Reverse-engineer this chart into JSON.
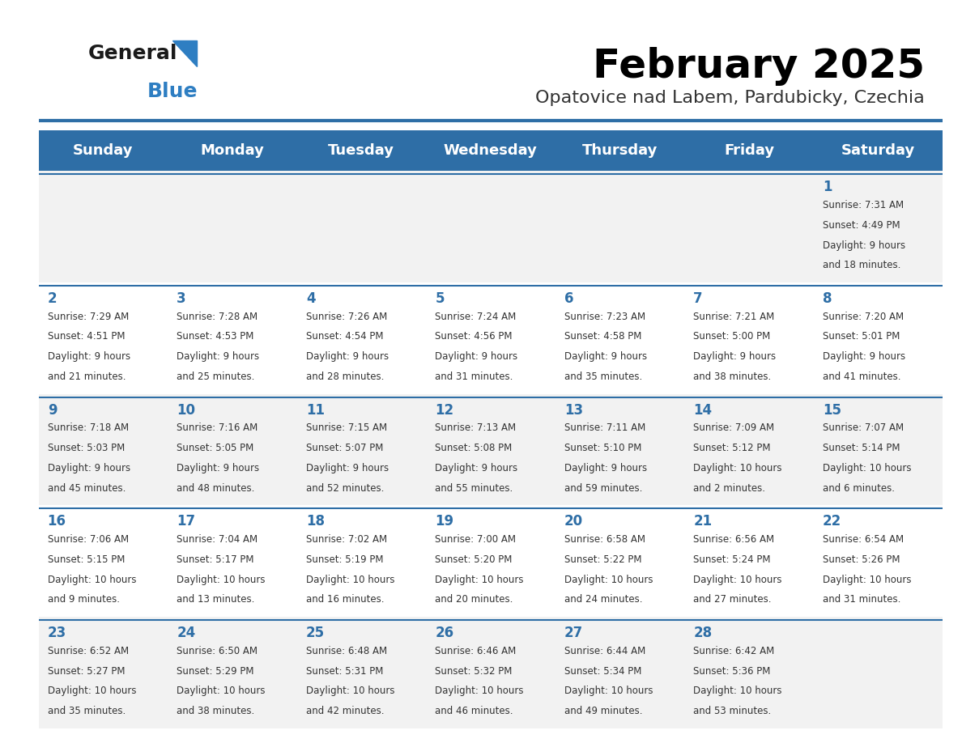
{
  "title": "February 2025",
  "subtitle": "Opatovice nad Labem, Pardubicky, Czechia",
  "days_of_week": [
    "Sunday",
    "Monday",
    "Tuesday",
    "Wednesday",
    "Thursday",
    "Friday",
    "Saturday"
  ],
  "header_bg": "#2E6EA6",
  "header_text": "#FFFFFF",
  "row_bg_odd": "#F2F2F2",
  "row_bg_even": "#FFFFFF",
  "border_color": "#2E6EA6",
  "day_num_color": "#2E6EA6",
  "cell_text_color": "#333333",
  "title_color": "#000000",
  "subtitle_color": "#333333",
  "logo_general_color": "#1a1a1a",
  "logo_blue_color": "#2E7EC2",
  "calendar_data": [
    [
      null,
      null,
      null,
      null,
      null,
      null,
      {
        "day": 1,
        "sunrise": "7:31 AM",
        "sunset": "4:49 PM",
        "daylight": "9 hours\nand 18 minutes."
      }
    ],
    [
      {
        "day": 2,
        "sunrise": "7:29 AM",
        "sunset": "4:51 PM",
        "daylight": "9 hours\nand 21 minutes."
      },
      {
        "day": 3,
        "sunrise": "7:28 AM",
        "sunset": "4:53 PM",
        "daylight": "9 hours\nand 25 minutes."
      },
      {
        "day": 4,
        "sunrise": "7:26 AM",
        "sunset": "4:54 PM",
        "daylight": "9 hours\nand 28 minutes."
      },
      {
        "day": 5,
        "sunrise": "7:24 AM",
        "sunset": "4:56 PM",
        "daylight": "9 hours\nand 31 minutes."
      },
      {
        "day": 6,
        "sunrise": "7:23 AM",
        "sunset": "4:58 PM",
        "daylight": "9 hours\nand 35 minutes."
      },
      {
        "day": 7,
        "sunrise": "7:21 AM",
        "sunset": "5:00 PM",
        "daylight": "9 hours\nand 38 minutes."
      },
      {
        "day": 8,
        "sunrise": "7:20 AM",
        "sunset": "5:01 PM",
        "daylight": "9 hours\nand 41 minutes."
      }
    ],
    [
      {
        "day": 9,
        "sunrise": "7:18 AM",
        "sunset": "5:03 PM",
        "daylight": "9 hours\nand 45 minutes."
      },
      {
        "day": 10,
        "sunrise": "7:16 AM",
        "sunset": "5:05 PM",
        "daylight": "9 hours\nand 48 minutes."
      },
      {
        "day": 11,
        "sunrise": "7:15 AM",
        "sunset": "5:07 PM",
        "daylight": "9 hours\nand 52 minutes."
      },
      {
        "day": 12,
        "sunrise": "7:13 AM",
        "sunset": "5:08 PM",
        "daylight": "9 hours\nand 55 minutes."
      },
      {
        "day": 13,
        "sunrise": "7:11 AM",
        "sunset": "5:10 PM",
        "daylight": "9 hours\nand 59 minutes."
      },
      {
        "day": 14,
        "sunrise": "7:09 AM",
        "sunset": "5:12 PM",
        "daylight": "10 hours\nand 2 minutes."
      },
      {
        "day": 15,
        "sunrise": "7:07 AM",
        "sunset": "5:14 PM",
        "daylight": "10 hours\nand 6 minutes."
      }
    ],
    [
      {
        "day": 16,
        "sunrise": "7:06 AM",
        "sunset": "5:15 PM",
        "daylight": "10 hours\nand 9 minutes."
      },
      {
        "day": 17,
        "sunrise": "7:04 AM",
        "sunset": "5:17 PM",
        "daylight": "10 hours\nand 13 minutes."
      },
      {
        "day": 18,
        "sunrise": "7:02 AM",
        "sunset": "5:19 PM",
        "daylight": "10 hours\nand 16 minutes."
      },
      {
        "day": 19,
        "sunrise": "7:00 AM",
        "sunset": "5:20 PM",
        "daylight": "10 hours\nand 20 minutes."
      },
      {
        "day": 20,
        "sunrise": "6:58 AM",
        "sunset": "5:22 PM",
        "daylight": "10 hours\nand 24 minutes."
      },
      {
        "day": 21,
        "sunrise": "6:56 AM",
        "sunset": "5:24 PM",
        "daylight": "10 hours\nand 27 minutes."
      },
      {
        "day": 22,
        "sunrise": "6:54 AM",
        "sunset": "5:26 PM",
        "daylight": "10 hours\nand 31 minutes."
      }
    ],
    [
      {
        "day": 23,
        "sunrise": "6:52 AM",
        "sunset": "5:27 PM",
        "daylight": "10 hours\nand 35 minutes."
      },
      {
        "day": 24,
        "sunrise": "6:50 AM",
        "sunset": "5:29 PM",
        "daylight": "10 hours\nand 38 minutes."
      },
      {
        "day": 25,
        "sunrise": "6:48 AM",
        "sunset": "5:31 PM",
        "daylight": "10 hours\nand 42 minutes."
      },
      {
        "day": 26,
        "sunrise": "6:46 AM",
        "sunset": "5:32 PM",
        "daylight": "10 hours\nand 46 minutes."
      },
      {
        "day": 27,
        "sunrise": "6:44 AM",
        "sunset": "5:34 PM",
        "daylight": "10 hours\nand 49 minutes."
      },
      {
        "day": 28,
        "sunrise": "6:42 AM",
        "sunset": "5:36 PM",
        "daylight": "10 hours\nand 53 minutes."
      },
      null
    ]
  ]
}
